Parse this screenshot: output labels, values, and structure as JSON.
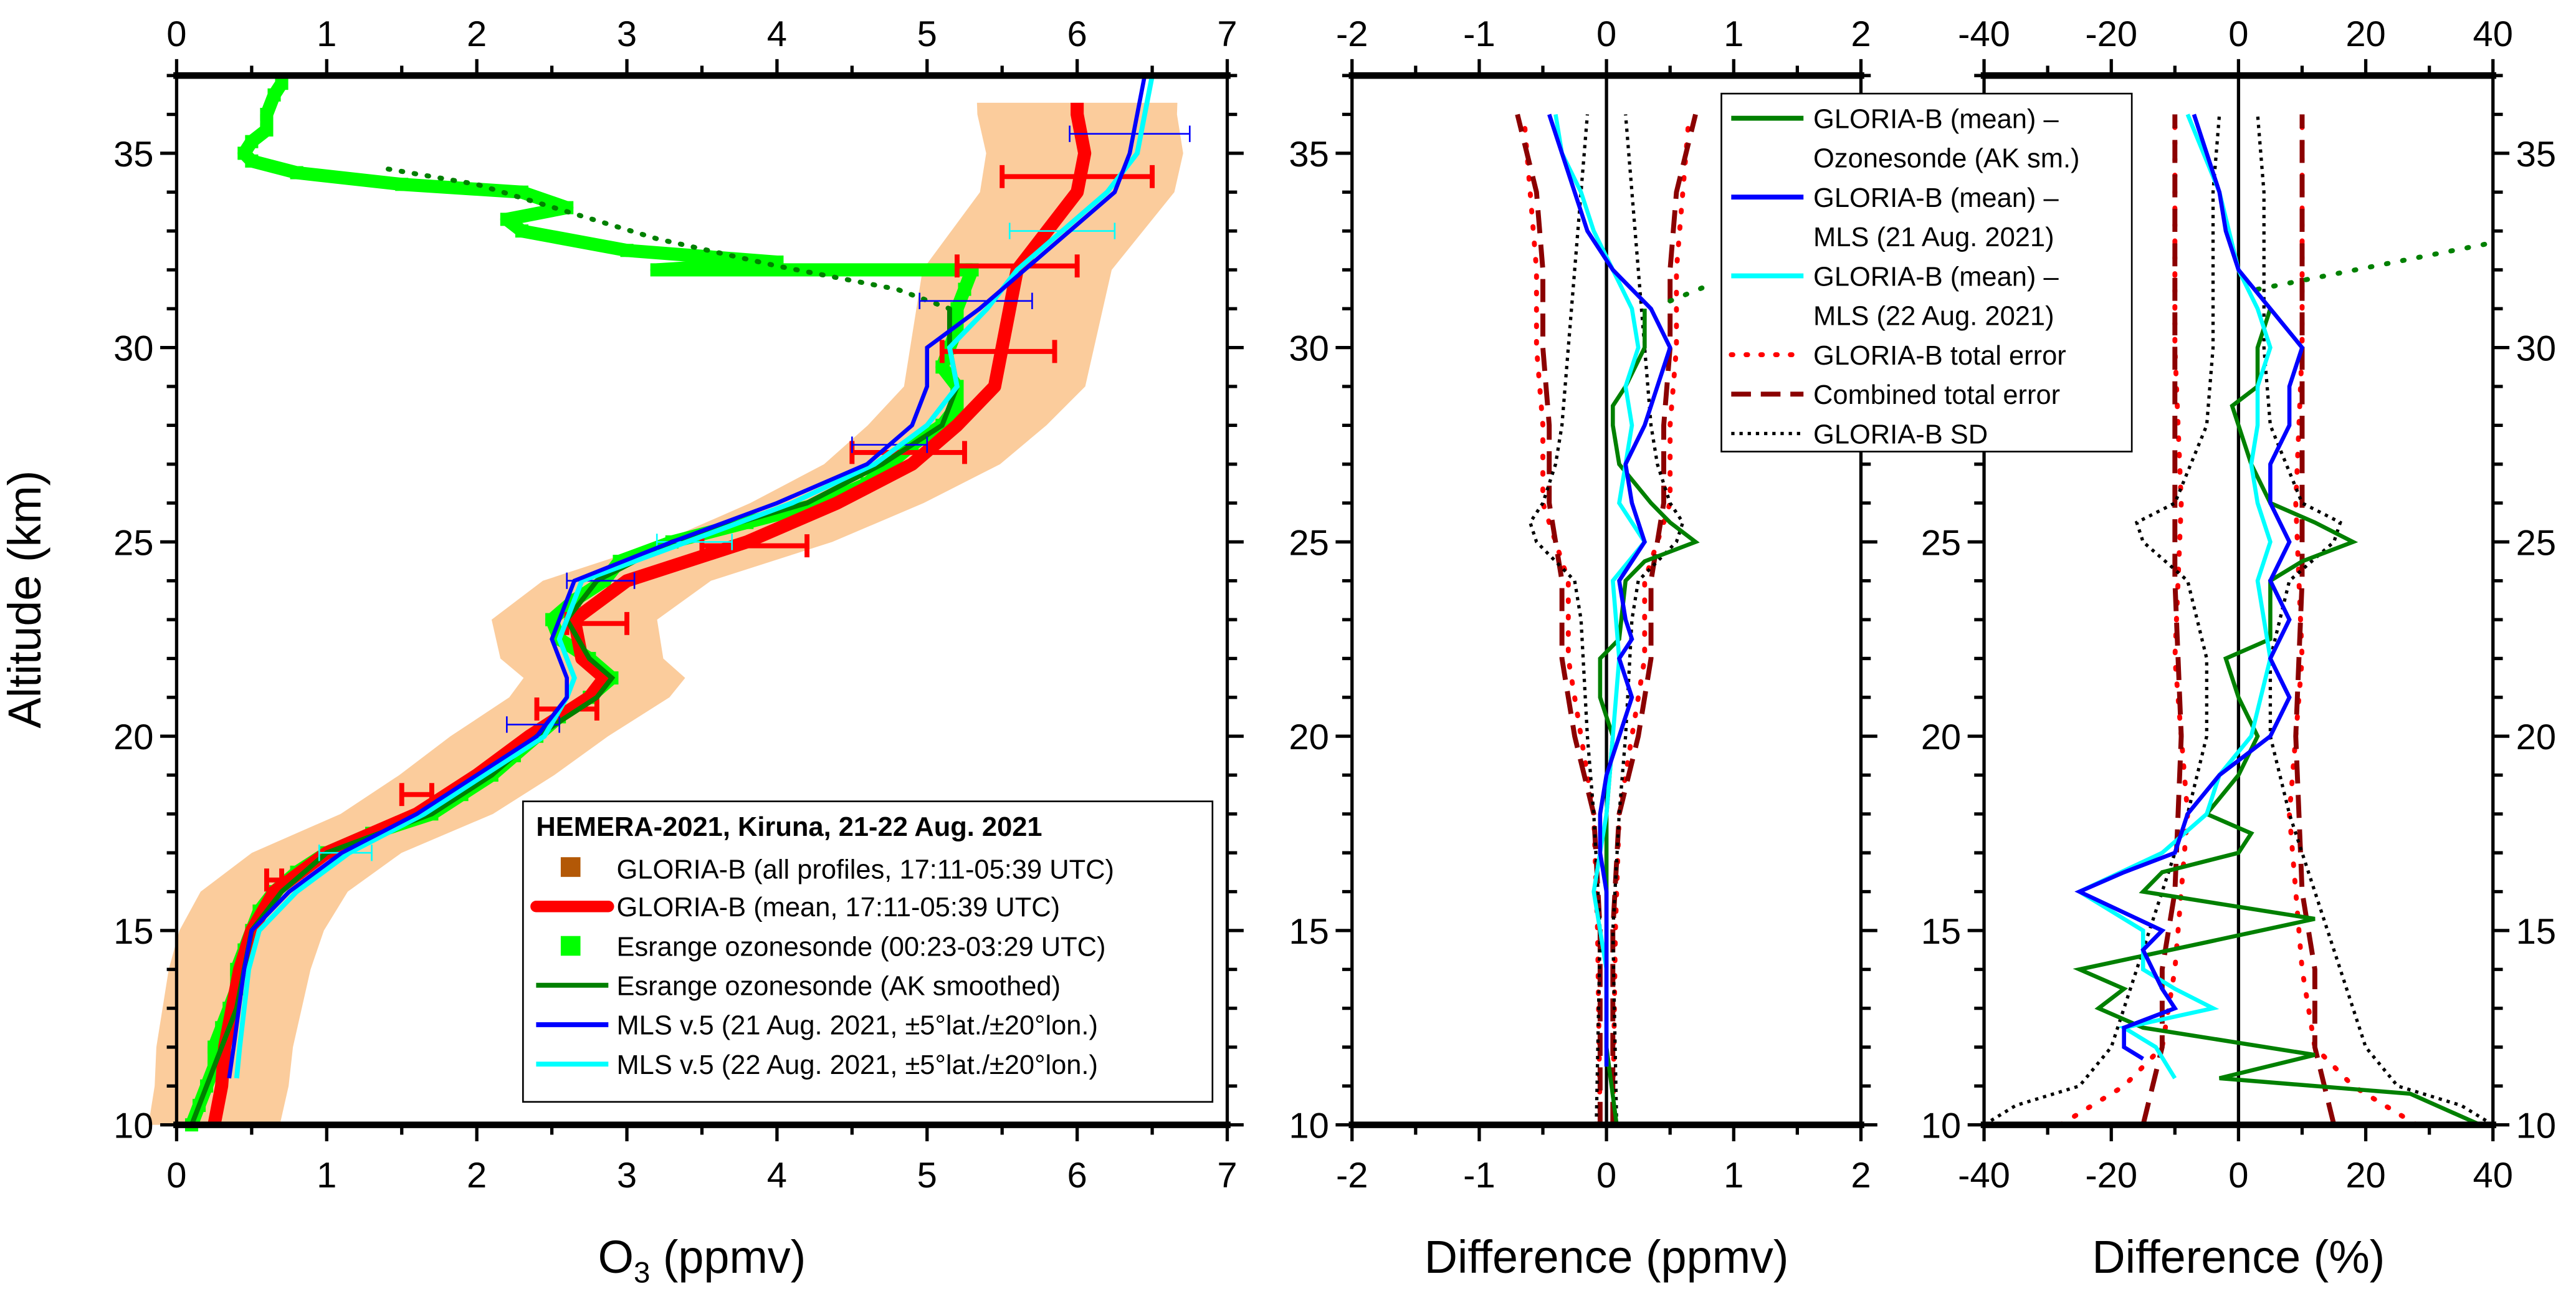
{
  "chart_data": [
    {
      "type": "line",
      "panel": "ozone",
      "xlabel_main": "O",
      "xlabel_sub": "3",
      "xlabel_rest": " (ppmv)",
      "ylabel": "Altitude (km)",
      "xlim": [
        0,
        7
      ],
      "ylim": [
        10,
        37
      ],
      "xticks": [
        "0",
        "1",
        "2",
        "3",
        "4",
        "5",
        "6",
        "7"
      ],
      "yticks": [
        "10",
        "15",
        "20",
        "25",
        "30",
        "35"
      ],
      "legend": {
        "title": "HEMERA-2021, Kiruna, 21-22 Aug. 2021",
        "placement": "bottom-right",
        "entries": [
          "GLORIA-B (all profiles, 17:11-05:39 UTC)",
          "GLORIA-B (mean, 17:11-05:39 UTC)",
          "Esrange ozonesonde (00:23-03:29 UTC)",
          "Esrange ozonesonde (AK smoothed)",
          "MLS v.5 (21 Aug. 2021, ±5°lat./±20°lon.)",
          "MLS v.5 (22 Aug. 2021, ±5°lat./±20°lon.)"
        ]
      },
      "colors": {
        "all": "#f7a24a",
        "mean": "#ff0000",
        "sonde": "#00ff00",
        "ak": "#008000",
        "mls21": "#0000ff",
        "mls22": "#00ffff"
      },
      "series": {
        "gloria_mean": {
          "alt": [
            10,
            11,
            12,
            13,
            14,
            15,
            16,
            17,
            18,
            19,
            20,
            21,
            21.5,
            22,
            23,
            24,
            25,
            26,
            27,
            28,
            29,
            30,
            31,
            32,
            33,
            34,
            35,
            36,
            36.3
          ],
          "o3": [
            0.25,
            0.3,
            0.32,
            0.37,
            0.42,
            0.5,
            0.65,
            1.0,
            1.6,
            2.0,
            2.35,
            2.75,
            2.85,
            2.7,
            2.65,
            3.0,
            3.8,
            4.4,
            4.9,
            5.2,
            5.45,
            5.5,
            5.55,
            5.6,
            5.8,
            6.0,
            6.05,
            6.0,
            6.0
          ]
        },
        "gloria_spread_ppmv": 0.35,
        "gloria_errorbars": [
          {
            "alt": 34.4,
            "lo": 5.5,
            "hi": 6.5
          },
          {
            "alt": 32.1,
            "lo": 5.2,
            "hi": 6.0
          },
          {
            "alt": 29.9,
            "lo": 5.1,
            "hi": 5.85
          },
          {
            "alt": 27.3,
            "lo": 4.5,
            "hi": 5.25
          },
          {
            "alt": 24.9,
            "lo": 3.5,
            "hi": 4.2
          },
          {
            "alt": 22.9,
            "lo": 2.6,
            "hi": 3.0
          },
          {
            "alt": 20.7,
            "lo": 2.4,
            "hi": 2.8
          },
          {
            "alt": 18.5,
            "lo": 1.5,
            "hi": 1.7
          },
          {
            "alt": 16.3,
            "lo": 0.6,
            "hi": 0.7
          }
        ],
        "sonde": {
          "alt": [
            10,
            10.5,
            11,
            11.5,
            12,
            12.5,
            13,
            13.5,
            14,
            14.5,
            15,
            15.5,
            16,
            16.5,
            17,
            17.5,
            18,
            18.5,
            19,
            19.5,
            20,
            20.5,
            21,
            21.5,
            22,
            22.5,
            23,
            23.5,
            24,
            24.5,
            25,
            25.5,
            26,
            26.5,
            27,
            27.5,
            28,
            28.5,
            29,
            29.5,
            30,
            30.5,
            31,
            31.5,
            32,
            32,
            32.2,
            32.5,
            33,
            33.3,
            33.6,
            34,
            34.2,
            34.5,
            34.8,
            35,
            35.3,
            35.6,
            36,
            36.5,
            36.8
          ],
          "o3": [
            0.1,
            0.15,
            0.2,
            0.25,
            0.25,
            0.3,
            0.35,
            0.4,
            0.4,
            0.45,
            0.5,
            0.55,
            0.65,
            0.8,
            1.0,
            1.3,
            1.7,
            1.9,
            2.1,
            2.25,
            2.4,
            2.55,
            2.75,
            2.9,
            2.75,
            2.55,
            2.5,
            2.65,
            2.85,
            2.95,
            3.3,
            3.8,
            4.3,
            4.6,
            4.75,
            4.9,
            5.1,
            5.2,
            5.2,
            5.1,
            5.15,
            5.2,
            5.2,
            5.25,
            5.3,
            3.2,
            4.0,
            3.0,
            2.3,
            2.2,
            2.6,
            2.3,
            1.5,
            0.8,
            0.5,
            0.45,
            0.5,
            0.6,
            0.6,
            0.65,
            0.7
          ]
        },
        "sonde_ak": {
          "alt": [
            10,
            11,
            12,
            13,
            14,
            15,
            16,
            17,
            18,
            19,
            20,
            21,
            21.5,
            22,
            23,
            24,
            25,
            26,
            27,
            28,
            29,
            30,
            31
          ],
          "o3": [
            0.1,
            0.2,
            0.3,
            0.4,
            0.45,
            0.5,
            0.7,
            1.0,
            1.7,
            2.1,
            2.4,
            2.8,
            2.9,
            2.75,
            2.6,
            2.8,
            3.3,
            4.2,
            4.7,
            5.1,
            5.2,
            5.15,
            5.15
          ]
        },
        "sonde_ak_dotted": {
          "alt": [
            31,
            31.5,
            32.1,
            32.8,
            33.5,
            34.2,
            34.6
          ],
          "o3": [
            5.15,
            4.8,
            4.0,
            3.2,
            2.6,
            2.0,
            1.4
          ]
        },
        "mls21": {
          "alt": [
            11.2,
            12,
            14,
            15,
            16,
            17,
            18,
            19,
            20,
            21,
            21.5,
            22.5,
            24,
            25,
            26,
            27,
            28,
            29,
            30,
            31,
            32,
            33,
            34,
            35,
            37
          ],
          "o3": [
            0.35,
            0.38,
            0.45,
            0.5,
            0.75,
            1.1,
            1.6,
            2.0,
            2.4,
            2.6,
            2.6,
            2.5,
            2.65,
            3.3,
            4.0,
            4.6,
            4.9,
            5.0,
            5.0,
            5.35,
            5.65,
            5.95,
            6.25,
            6.35,
            6.45
          ]
        },
        "mls22": {
          "alt": [
            11.2,
            12,
            14,
            15,
            16,
            17,
            18,
            19,
            20,
            21,
            21.5,
            22.5,
            24,
            25,
            26,
            27,
            28,
            29,
            30,
            31,
            32,
            33,
            34,
            35,
            37
          ],
          "o3": [
            0.4,
            0.42,
            0.48,
            0.55,
            0.8,
            1.15,
            1.65,
            2.05,
            2.45,
            2.6,
            2.65,
            2.55,
            2.7,
            3.4,
            4.1,
            4.65,
            5.0,
            5.2,
            5.15,
            5.4,
            5.6,
            5.9,
            6.2,
            6.4,
            6.5
          ]
        },
        "mls21_err": [
          {
            "alt": 35.5,
            "lo": 5.95,
            "hi": 6.75
          },
          {
            "alt": 31.2,
            "lo": 4.95,
            "hi": 5.7
          },
          {
            "alt": 27.5,
            "lo": 4.5,
            "hi": 5.0
          },
          {
            "alt": 24.0,
            "lo": 2.6,
            "hi": 3.05
          },
          {
            "alt": 20.3,
            "lo": 2.2,
            "hi": 2.55
          }
        ],
        "mls22_err": [
          {
            "alt": 33.0,
            "lo": 5.55,
            "hi": 6.25
          },
          {
            "alt": 25.0,
            "lo": 3.2,
            "hi": 3.7
          },
          {
            "alt": 17.0,
            "lo": 0.95,
            "hi": 1.3
          }
        ]
      }
    },
    {
      "type": "line",
      "panel": "difference-ppmv",
      "xlabel": "Difference (ppmv)",
      "xlim": [
        -2,
        2
      ],
      "ylim": [
        10,
        37
      ],
      "xticks": [
        "-2",
        "-1",
        "0",
        "1",
        "2"
      ],
      "yticks": [
        "10",
        "15",
        "20",
        "25",
        "30",
        "35"
      ],
      "legend": {
        "placement": "top-right",
        "entries": [
          "GLORIA-B (mean) –",
          "Ozonesonde (AK sm.)",
          "GLORIA-B (mean) –",
          "MLS (21 Aug. 2021)",
          "GLORIA-B (mean) –",
          "MLS (22 Aug. 2021)",
          "GLORIA-B total error",
          "Combined total error",
          "GLORIA-B SD"
        ]
      },
      "series": {
        "sonde": {
          "alt": [
            10,
            12,
            14,
            16,
            18,
            20,
            21,
            22,
            22.5,
            24,
            24.5,
            25,
            25.5,
            26,
            27,
            28,
            28.5,
            29,
            30,
            31
          ],
          "x": [
            0.08,
            0.0,
            0.0,
            0.0,
            0.0,
            0.05,
            -0.05,
            -0.05,
            0.1,
            0.15,
            0.3,
            0.7,
            0.5,
            0.35,
            0.1,
            0.05,
            0.05,
            0.15,
            0.3,
            0.3
          ]
        },
        "sonde_dotted": {
          "alt": [
            31.2,
            31.6
          ],
          "x": [
            0.5,
            0.8
          ]
        },
        "mls21": {
          "alt": [
            11.5,
            14,
            16,
            17,
            18,
            19,
            20,
            21,
            22,
            22.5,
            23,
            24,
            25,
            26,
            27,
            28,
            29,
            30,
            31,
            32,
            33,
            34,
            35,
            36
          ],
          "x": [
            0,
            0,
            0,
            -0.05,
            -0.05,
            0,
            0.1,
            0.2,
            0.1,
            0.2,
            0.15,
            0.1,
            0.3,
            0.2,
            0.15,
            0.3,
            0.4,
            0.5,
            0.35,
            0.05,
            -0.15,
            -0.25,
            -0.35,
            -0.45
          ]
        },
        "mls22": {
          "alt": [
            11.5,
            14,
            16,
            17,
            18,
            20,
            22,
            24,
            25,
            26,
            27,
            28,
            29,
            30,
            31,
            32,
            33,
            34,
            35,
            36
          ],
          "x": [
            0,
            0,
            -0.1,
            -0.05,
            0,
            0.05,
            0.1,
            0.05,
            0.3,
            0.1,
            0.15,
            0.2,
            0.15,
            0.25,
            0.2,
            0.05,
            -0.1,
            -0.2,
            -0.35,
            -0.4
          ]
        },
        "gloria_err": {
          "alt": [
            10,
            15,
            18,
            20,
            22,
            24,
            26,
            28,
            30,
            32,
            34,
            36
          ],
          "x": [
            0.05,
            0.07,
            0.1,
            0.2,
            0.3,
            0.3,
            0.5,
            0.5,
            0.55,
            0.55,
            0.6,
            0.65
          ]
        },
        "combined_err": {
          "alt": [
            10,
            15,
            18,
            20,
            22,
            24,
            26,
            28,
            30,
            32,
            34,
            36
          ],
          "x": [
            0.05,
            0.05,
            0.1,
            0.25,
            0.35,
            0.35,
            0.45,
            0.45,
            0.5,
            0.5,
            0.55,
            0.7
          ]
        },
        "sd": {
          "alt": [
            10,
            15,
            18,
            20,
            23,
            24,
            25,
            25.5,
            26,
            27,
            28,
            30,
            32,
            34,
            36
          ],
          "x": [
            0.08,
            0.05,
            0.1,
            0.15,
            0.2,
            0.25,
            0.55,
            0.6,
            0.5,
            0.4,
            0.35,
            0.3,
            0.25,
            0.2,
            0.15
          ]
        }
      }
    },
    {
      "type": "line",
      "panel": "difference-percent",
      "xlabel": "Difference (%)",
      "xlim": [
        -40,
        40
      ],
      "ylim": [
        10,
        37
      ],
      "xticks": [
        "-40",
        "-20",
        "0",
        "20",
        "40"
      ],
      "yticks": [
        "10",
        "15",
        "20",
        "25",
        "30",
        "35"
      ],
      "series": {
        "sonde": {
          "alt": [
            10,
            10.8,
            11.2,
            11.8,
            12.5,
            13,
            13.5,
            14,
            14.7,
            15.3,
            16,
            16.5,
            17,
            17.5,
            18,
            19,
            20,
            21,
            22,
            22.5,
            24,
            24.5,
            25,
            25.5,
            26,
            27,
            28,
            28.5,
            29,
            30,
            31
          ],
          "x": [
            38,
            27,
            -3,
            12,
            -15,
            -22,
            -18,
            -25,
            -5,
            12,
            -15,
            -12,
            0,
            2,
            -5,
            0,
            3,
            0,
            -2,
            5,
            5,
            10,
            18,
            12,
            5,
            2,
            0,
            -1,
            3,
            3,
            5
          ]
        },
        "sonde_dotted": {
          "alt": [
            31.5,
            32.7
          ],
          "x": [
            3,
            40
          ]
        },
        "mls21": {
          "alt": [
            11.7,
            12,
            12.5,
            13,
            13.5,
            14.5,
            15,
            16,
            16.5,
            17,
            18,
            19,
            20,
            21,
            22,
            23,
            24,
            25,
            26,
            27,
            28,
            29,
            30,
            31,
            32,
            33,
            34,
            35,
            36
          ],
          "x": [
            -15,
            -18,
            -18,
            -10,
            -12,
            -15,
            -12,
            -25,
            -18,
            -10,
            -8,
            -3,
            5,
            8,
            5,
            8,
            5,
            8,
            5,
            5,
            8,
            8,
            10,
            5,
            0,
            -2,
            -3,
            -5,
            -7
          ]
        },
        "mls22": {
          "alt": [
            11.2,
            12,
            12.5,
            13,
            13.5,
            14,
            15,
            16,
            17,
            18,
            19,
            20,
            22,
            24,
            25,
            26,
            27,
            28,
            29,
            30,
            31,
            32,
            34,
            36
          ],
          "x": [
            -10,
            -13,
            -18,
            -4,
            -10,
            -15,
            -15,
            -25,
            -12,
            -5,
            -3,
            2,
            5,
            3,
            5,
            3,
            2,
            3,
            3,
            5,
            3,
            0,
            -3,
            -8
          ]
        },
        "gloria_err": {
          "alt": [
            10,
            11,
            12,
            14,
            18,
            22,
            26,
            30,
            34,
            36
          ],
          "x": [
            28,
            18,
            12,
            10,
            8,
            10,
            9,
            10,
            10,
            10
          ]
        },
        "combined_err": {
          "alt": [
            10,
            12,
            14,
            16,
            20,
            24,
            28,
            30,
            34,
            36
          ],
          "x": [
            15,
            12,
            12,
            10,
            9,
            10,
            10,
            10,
            10,
            10
          ]
        },
        "sd": {
          "alt": [
            10,
            10.5,
            11,
            12,
            13,
            14,
            15,
            16,
            17,
            18,
            20,
            22,
            24,
            25,
            25.5,
            26,
            28,
            30,
            34,
            36
          ],
          "x": [
            40,
            35,
            25,
            20,
            18,
            16,
            14,
            12,
            10,
            8,
            5,
            5,
            8,
            15,
            16,
            10,
            5,
            4,
            4,
            3
          ]
        }
      }
    }
  ]
}
